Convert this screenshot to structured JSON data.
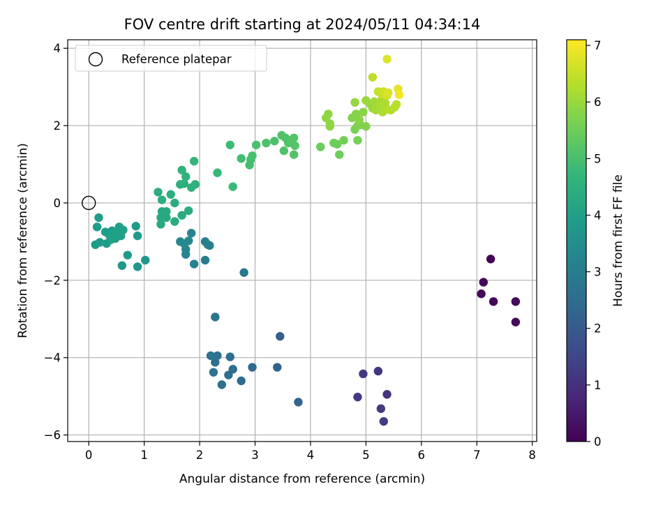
{
  "chart_data": {
    "type": "scatter",
    "title": "FOV centre drift starting at 2024/05/11 04:34:14",
    "xlabel": "Angular distance from reference (arcmin)",
    "ylabel": "Rotation from reference (arcmin)",
    "xlim": [
      -0.38,
      8.08
    ],
    "ylim": [
      -6.17,
      4.22
    ],
    "xticks": [
      0,
      1,
      2,
      3,
      4,
      5,
      6,
      7,
      8
    ],
    "yticks": [
      -6,
      -4,
      -2,
      0,
      2,
      4
    ],
    "grid": true,
    "legend": {
      "placement": "top-left",
      "entries": [
        "Reference platepar"
      ]
    },
    "reference_point": {
      "x": 0,
      "y": 0
    },
    "colorbar": {
      "label": "Hours from first FF file",
      "range": [
        0,
        7.1
      ],
      "ticks": [
        0,
        1,
        2,
        3,
        4,
        5,
        6,
        7
      ],
      "colormap": "viridis"
    },
    "colormap_stops": [
      "#440154",
      "#482878",
      "#3e4a89",
      "#31688e",
      "#26828e",
      "#1f9e89",
      "#35b779",
      "#6ece58",
      "#b5de2b",
      "#fde725"
    ],
    "points": [
      {
        "x": 7.25,
        "y": -1.45,
        "c": 0.05
      },
      {
        "x": 7.12,
        "y": -2.05,
        "c": 0.08
      },
      {
        "x": 7.08,
        "y": -2.35,
        "c": 0.1
      },
      {
        "x": 7.3,
        "y": -2.55,
        "c": 0.12
      },
      {
        "x": 7.7,
        "y": -2.55,
        "c": 0.15
      },
      {
        "x": 7.7,
        "y": -3.08,
        "c": 0.18
      },
      {
        "x": 5.38,
        "y": -4.95,
        "c": 1.05
      },
      {
        "x": 5.22,
        "y": -4.35,
        "c": 1.1
      },
      {
        "x": 4.95,
        "y": -4.42,
        "c": 1.15
      },
      {
        "x": 4.85,
        "y": -5.02,
        "c": 1.2
      },
      {
        "x": 5.27,
        "y": -5.32,
        "c": 1.22
      },
      {
        "x": 5.32,
        "y": -5.65,
        "c": 1.25
      },
      {
        "x": 3.45,
        "y": -3.45,
        "c": 2.15
      },
      {
        "x": 3.4,
        "y": -4.25,
        "c": 2.2
      },
      {
        "x": 3.78,
        "y": -5.15,
        "c": 2.25
      },
      {
        "x": 2.95,
        "y": -4.25,
        "c": 2.45
      },
      {
        "x": 2.75,
        "y": -4.6,
        "c": 2.5
      },
      {
        "x": 2.6,
        "y": -4.3,
        "c": 2.55
      },
      {
        "x": 2.55,
        "y": -3.98,
        "c": 2.55
      },
      {
        "x": 2.52,
        "y": -4.45,
        "c": 2.6
      },
      {
        "x": 2.4,
        "y": -4.7,
        "c": 2.6
      },
      {
        "x": 2.32,
        "y": -3.95,
        "c": 2.65
      },
      {
        "x": 2.28,
        "y": -4.12,
        "c": 2.65
      },
      {
        "x": 2.2,
        "y": -3.95,
        "c": 2.7
      },
      {
        "x": 2.25,
        "y": -4.38,
        "c": 2.7
      },
      {
        "x": 2.28,
        "y": -2.95,
        "c": 2.75
      },
      {
        "x": 2.8,
        "y": -1.8,
        "c": 2.85
      },
      {
        "x": 2.1,
        "y": -1.48,
        "c": 2.95
      },
      {
        "x": 2.1,
        "y": -1.0,
        "c": 3.05
      },
      {
        "x": 2.15,
        "y": -1.08,
        "c": 3.05
      },
      {
        "x": 2.18,
        "y": -1.1,
        "c": 3.1
      },
      {
        "x": 1.9,
        "y": -1.58,
        "c": 3.15
      },
      {
        "x": 1.85,
        "y": -0.78,
        "c": 3.2
      },
      {
        "x": 1.75,
        "y": -1.33,
        "c": 3.25
      },
      {
        "x": 1.75,
        "y": -1.2,
        "c": 3.25
      },
      {
        "x": 1.8,
        "y": -0.98,
        "c": 3.3
      },
      {
        "x": 1.65,
        "y": -1.0,
        "c": 3.3
      },
      {
        "x": 1.72,
        "y": -1.05,
        "c": 3.35
      },
      {
        "x": 1.02,
        "y": -1.48,
        "c": 3.75
      },
      {
        "x": 0.88,
        "y": -1.65,
        "c": 3.75
      },
      {
        "x": 0.6,
        "y": -1.62,
        "c": 3.8
      },
      {
        "x": 0.7,
        "y": -1.35,
        "c": 3.8
      },
      {
        "x": 0.88,
        "y": -0.85,
        "c": 3.85
      },
      {
        "x": 0.85,
        "y": -0.6,
        "c": 3.85
      },
      {
        "x": 0.12,
        "y": -1.08,
        "c": 3.9
      },
      {
        "x": 0.2,
        "y": -1.02,
        "c": 3.9
      },
      {
        "x": 0.32,
        "y": -1.05,
        "c": 3.9
      },
      {
        "x": 0.15,
        "y": -0.62,
        "c": 3.92
      },
      {
        "x": 0.18,
        "y": -0.38,
        "c": 3.92
      },
      {
        "x": 0.3,
        "y": -0.75,
        "c": 3.95
      },
      {
        "x": 0.38,
        "y": -0.85,
        "c": 3.95
      },
      {
        "x": 0.42,
        "y": -0.72,
        "c": 3.95
      },
      {
        "x": 0.48,
        "y": -0.92,
        "c": 3.98
      },
      {
        "x": 0.5,
        "y": -0.78,
        "c": 4.0
      },
      {
        "x": 0.55,
        "y": -0.62,
        "c": 4.0
      },
      {
        "x": 0.58,
        "y": -0.85,
        "c": 4.0
      },
      {
        "x": 0.62,
        "y": -0.7,
        "c": 4.02
      },
      {
        "x": 0.4,
        "y": -0.95,
        "c": 4.02
      },
      {
        "x": 1.3,
        "y": -0.55,
        "c": 4.25
      },
      {
        "x": 1.3,
        "y": -0.38,
        "c": 4.25
      },
      {
        "x": 1.32,
        "y": -0.22,
        "c": 4.28
      },
      {
        "x": 1.4,
        "y": -0.38,
        "c": 4.3
      },
      {
        "x": 1.4,
        "y": -0.22,
        "c": 4.3
      },
      {
        "x": 1.55,
        "y": -0.48,
        "c": 4.32
      },
      {
        "x": 1.68,
        "y": -0.32,
        "c": 4.35
      },
      {
        "x": 1.8,
        "y": -0.2,
        "c": 4.38
      },
      {
        "x": 1.55,
        "y": 0.0,
        "c": 4.4
      },
      {
        "x": 1.25,
        "y": 0.28,
        "c": 4.4
      },
      {
        "x": 1.48,
        "y": 0.22,
        "c": 4.45
      },
      {
        "x": 1.32,
        "y": 0.08,
        "c": 4.45
      },
      {
        "x": 1.65,
        "y": 0.48,
        "c": 4.5
      },
      {
        "x": 1.72,
        "y": 0.5,
        "c": 4.5
      },
      {
        "x": 1.75,
        "y": 0.68,
        "c": 4.52
      },
      {
        "x": 1.85,
        "y": 0.4,
        "c": 4.55
      },
      {
        "x": 1.92,
        "y": 0.48,
        "c": 4.55
      },
      {
        "x": 1.68,
        "y": 0.85,
        "c": 4.6
      },
      {
        "x": 1.9,
        "y": 1.08,
        "c": 4.65
      },
      {
        "x": 2.32,
        "y": 0.78,
        "c": 4.75
      },
      {
        "x": 2.6,
        "y": 0.42,
        "c": 4.8
      },
      {
        "x": 2.55,
        "y": 1.5,
        "c": 4.85
      },
      {
        "x": 2.75,
        "y": 1.15,
        "c": 4.9
      },
      {
        "x": 2.9,
        "y": 0.98,
        "c": 4.95
      },
      {
        "x": 2.92,
        "y": 1.12,
        "c": 4.95
      },
      {
        "x": 2.95,
        "y": 1.22,
        "c": 5.0
      },
      {
        "x": 3.02,
        "y": 1.5,
        "c": 5.02
      },
      {
        "x": 3.2,
        "y": 1.55,
        "c": 5.05
      },
      {
        "x": 3.35,
        "y": 1.6,
        "c": 5.05
      },
      {
        "x": 3.48,
        "y": 1.75,
        "c": 5.1
      },
      {
        "x": 3.55,
        "y": 1.68,
        "c": 5.1
      },
      {
        "x": 3.6,
        "y": 1.55,
        "c": 5.12
      },
      {
        "x": 3.52,
        "y": 1.35,
        "c": 5.12
      },
      {
        "x": 3.7,
        "y": 1.25,
        "c": 5.15
      },
      {
        "x": 3.7,
        "y": 1.68,
        "c": 5.15
      },
      {
        "x": 3.72,
        "y": 1.48,
        "c": 5.18
      },
      {
        "x": 3.65,
        "y": 1.6,
        "c": 5.18
      },
      {
        "x": 4.18,
        "y": 1.45,
        "c": 5.45
      },
      {
        "x": 4.42,
        "y": 1.55,
        "c": 5.5
      },
      {
        "x": 4.48,
        "y": 1.52,
        "c": 5.5
      },
      {
        "x": 4.52,
        "y": 1.25,
        "c": 5.52
      },
      {
        "x": 4.6,
        "y": 1.62,
        "c": 5.55
      },
      {
        "x": 4.85,
        "y": 1.62,
        "c": 5.6
      },
      {
        "x": 4.8,
        "y": 1.9,
        "c": 5.65
      },
      {
        "x": 4.85,
        "y": 2.0,
        "c": 5.68
      },
      {
        "x": 4.9,
        "y": 2.02,
        "c": 5.7
      },
      {
        "x": 5.0,
        "y": 1.98,
        "c": 5.72
      },
      {
        "x": 4.75,
        "y": 2.2,
        "c": 5.75
      },
      {
        "x": 4.82,
        "y": 2.3,
        "c": 5.78
      },
      {
        "x": 4.88,
        "y": 2.15,
        "c": 5.8
      },
      {
        "x": 4.95,
        "y": 2.35,
        "c": 5.82
      },
      {
        "x": 4.35,
        "y": 2.05,
        "c": 5.85
      },
      {
        "x": 4.32,
        "y": 2.3,
        "c": 5.88
      },
      {
        "x": 4.28,
        "y": 2.2,
        "c": 5.9
      },
      {
        "x": 4.35,
        "y": 1.98,
        "c": 5.9
      },
      {
        "x": 4.8,
        "y": 2.6,
        "c": 5.95
      },
      {
        "x": 5.0,
        "y": 2.65,
        "c": 6.0
      },
      {
        "x": 5.08,
        "y": 2.55,
        "c": 6.02
      },
      {
        "x": 5.12,
        "y": 2.45,
        "c": 6.05
      },
      {
        "x": 5.15,
        "y": 2.62,
        "c": 6.08
      },
      {
        "x": 5.18,
        "y": 2.4,
        "c": 6.1
      },
      {
        "x": 5.22,
        "y": 2.55,
        "c": 6.12
      },
      {
        "x": 5.25,
        "y": 2.5,
        "c": 6.15
      },
      {
        "x": 5.28,
        "y": 2.65,
        "c": 6.18
      },
      {
        "x": 5.3,
        "y": 2.35,
        "c": 6.2
      },
      {
        "x": 5.35,
        "y": 2.58,
        "c": 6.22
      },
      {
        "x": 5.38,
        "y": 2.42,
        "c": 6.25
      },
      {
        "x": 5.45,
        "y": 2.4,
        "c": 6.3
      },
      {
        "x": 5.52,
        "y": 2.48,
        "c": 6.32
      },
      {
        "x": 5.55,
        "y": 2.55,
        "c": 6.35
      },
      {
        "x": 5.12,
        "y": 3.25,
        "c": 6.4
      },
      {
        "x": 5.22,
        "y": 2.88,
        "c": 6.45
      },
      {
        "x": 5.28,
        "y": 2.82,
        "c": 6.5
      },
      {
        "x": 5.32,
        "y": 2.88,
        "c": 6.55
      },
      {
        "x": 5.35,
        "y": 2.85,
        "c": 6.6
      },
      {
        "x": 5.38,
        "y": 2.78,
        "c": 6.65
      },
      {
        "x": 5.4,
        "y": 2.85,
        "c": 6.7
      },
      {
        "x": 5.38,
        "y": 3.72,
        "c": 6.75
      },
      {
        "x": 5.58,
        "y": 2.95,
        "c": 6.85
      },
      {
        "x": 5.6,
        "y": 2.8,
        "c": 7.0
      }
    ]
  }
}
